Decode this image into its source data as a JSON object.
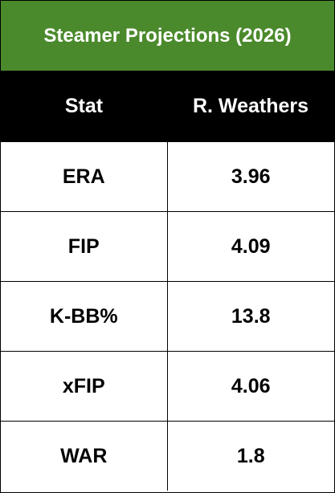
{
  "title": "Steamer Projections (2026)",
  "table": {
    "header": [
      "Stat",
      "R. Weathers"
    ],
    "rows": [
      [
        "ERA",
        "3.96"
      ],
      [
        "FIP",
        "4.09"
      ],
      [
        "K-BB%",
        "13.8"
      ],
      [
        "xFIP",
        "4.06"
      ],
      [
        "WAR",
        "1.8"
      ]
    ]
  }
}
